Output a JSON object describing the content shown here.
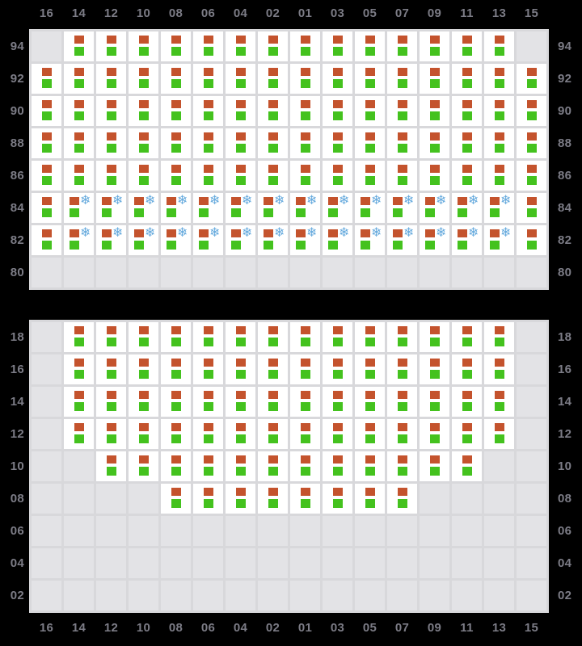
{
  "columns": [
    "16",
    "14",
    "12",
    "10",
    "08",
    "06",
    "04",
    "02",
    "01",
    "03",
    "05",
    "07",
    "09",
    "11",
    "13",
    "15"
  ],
  "colors": {
    "background": "#000000",
    "grid_line": "#d8d8db",
    "empty_cell": "#e3e3e6",
    "cabin_cell": "#ffffff",
    "axis_label": "#7c7c86",
    "orange_square": "#c4532d",
    "green_square": "#44c21e",
    "snowflake_blue": "#64a9dd"
  },
  "icons": {
    "top_square": "orange-square",
    "bottom_square": "green-square",
    "snowflake_glyph": "❄"
  },
  "panels": [
    {
      "name": "section-1",
      "rows": [
        {
          "label": "94",
          "cabins": [
            "14",
            "12",
            "10",
            "08",
            "06",
            "04",
            "02",
            "01",
            "03",
            "05",
            "07",
            "09",
            "11",
            "13"
          ],
          "snowflakes": []
        },
        {
          "label": "92",
          "cabins": [
            "16",
            "14",
            "12",
            "10",
            "08",
            "06",
            "04",
            "02",
            "01",
            "03",
            "05",
            "07",
            "09",
            "11",
            "13",
            "15"
          ],
          "snowflakes": []
        },
        {
          "label": "90",
          "cabins": [
            "16",
            "14",
            "12",
            "10",
            "08",
            "06",
            "04",
            "02",
            "01",
            "03",
            "05",
            "07",
            "09",
            "11",
            "13",
            "15"
          ],
          "snowflakes": []
        },
        {
          "label": "88",
          "cabins": [
            "16",
            "14",
            "12",
            "10",
            "08",
            "06",
            "04",
            "02",
            "01",
            "03",
            "05",
            "07",
            "09",
            "11",
            "13",
            "15"
          ],
          "snowflakes": []
        },
        {
          "label": "86",
          "cabins": [
            "16",
            "14",
            "12",
            "10",
            "08",
            "06",
            "04",
            "02",
            "01",
            "03",
            "05",
            "07",
            "09",
            "11",
            "13",
            "15"
          ],
          "snowflakes": []
        },
        {
          "label": "84",
          "cabins": [
            "16",
            "14",
            "12",
            "10",
            "08",
            "06",
            "04",
            "02",
            "01",
            "03",
            "05",
            "07",
            "09",
            "11",
            "13",
            "15"
          ],
          "snowflakes": [
            "14",
            "12",
            "10",
            "08",
            "06",
            "04",
            "02",
            "01",
            "03",
            "05",
            "07",
            "09",
            "11",
            "13"
          ]
        },
        {
          "label": "82",
          "cabins": [
            "16",
            "14",
            "12",
            "10",
            "08",
            "06",
            "04",
            "02",
            "01",
            "03",
            "05",
            "07",
            "09",
            "11",
            "13",
            "15"
          ],
          "snowflakes": [
            "14",
            "12",
            "10",
            "08",
            "06",
            "04",
            "02",
            "01",
            "03",
            "05",
            "07",
            "09",
            "11",
            "13"
          ]
        },
        {
          "label": "80",
          "cabins": [],
          "snowflakes": []
        }
      ]
    },
    {
      "name": "section-2",
      "rows": [
        {
          "label": "18",
          "cabins": [
            "14",
            "12",
            "10",
            "08",
            "06",
            "04",
            "02",
            "01",
            "03",
            "05",
            "07",
            "09",
            "11",
            "13"
          ],
          "snowflakes": []
        },
        {
          "label": "16",
          "cabins": [
            "14",
            "12",
            "10",
            "08",
            "06",
            "04",
            "02",
            "01",
            "03",
            "05",
            "07",
            "09",
            "11",
            "13"
          ],
          "snowflakes": []
        },
        {
          "label": "14",
          "cabins": [
            "14",
            "12",
            "10",
            "08",
            "06",
            "04",
            "02",
            "01",
            "03",
            "05",
            "07",
            "09",
            "11",
            "13"
          ],
          "snowflakes": []
        },
        {
          "label": "12",
          "cabins": [
            "14",
            "12",
            "10",
            "08",
            "06",
            "04",
            "02",
            "01",
            "03",
            "05",
            "07",
            "09",
            "11",
            "13"
          ],
          "snowflakes": []
        },
        {
          "label": "10",
          "cabins": [
            "12",
            "10",
            "08",
            "06",
            "04",
            "02",
            "01",
            "03",
            "05",
            "07",
            "09",
            "11"
          ],
          "snowflakes": []
        },
        {
          "label": "08",
          "cabins": [
            "08",
            "06",
            "04",
            "02",
            "01",
            "03",
            "05",
            "07"
          ],
          "snowflakes": []
        },
        {
          "label": "06",
          "cabins": [],
          "snowflakes": []
        },
        {
          "label": "04",
          "cabins": [],
          "snowflakes": []
        },
        {
          "label": "02",
          "cabins": [],
          "snowflakes": []
        }
      ]
    }
  ]
}
